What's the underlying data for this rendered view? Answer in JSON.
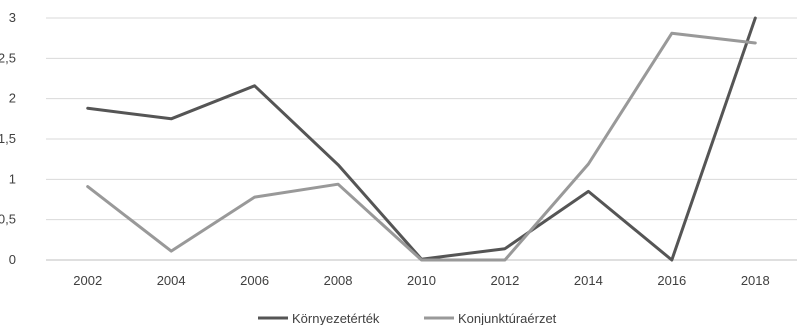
{
  "chart_data": {
    "type": "line",
    "x": [
      "2002",
      "2004",
      "2006",
      "2008",
      "2010",
      "2012",
      "2014",
      "2016",
      "2018"
    ],
    "y_ticks": [
      "0",
      "0,5",
      "1",
      "1,5",
      "2",
      "2,5",
      "3"
    ],
    "ylim": [
      0,
      3
    ],
    "grid": true,
    "legend_position": "bottom",
    "series": [
      {
        "name": "Környezetérték",
        "color": "#555555",
        "values": [
          1.88,
          1.75,
          2.16,
          1.18,
          0.01,
          0.14,
          0.85,
          0.0,
          3.0
        ]
      },
      {
        "name": "Konjunktúraérzet",
        "color": "#999999",
        "values": [
          0.91,
          0.11,
          0.78,
          0.94,
          0.0,
          0.0,
          1.19,
          2.81,
          2.69
        ]
      }
    ]
  }
}
